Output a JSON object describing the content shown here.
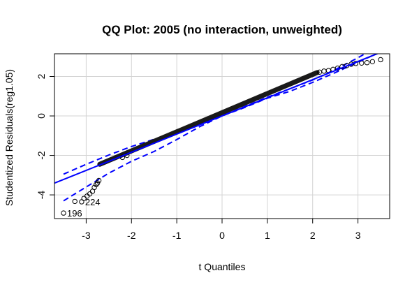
{
  "chart_data": {
    "type": "scatter",
    "title": "QQ Plot: 2005 (no interaction, unweighted)",
    "xlabel": "t Quantiles",
    "ylabel": "Studentized Residuals(reg1.05)",
    "xlim": [
      -3.7,
      3.7
    ],
    "ylim": [
      -5.2,
      3.15
    ],
    "x_ticks": [
      "-3",
      "-2",
      "-1",
      "0",
      "1",
      "2",
      "3"
    ],
    "y_ticks": [
      "-4",
      "-2",
      "0",
      "2"
    ],
    "grid": true,
    "colors": {
      "points": "#000000",
      "reference_line": "#0000ff",
      "grid": "#d3d3d3",
      "frame": "#000000"
    },
    "reference_line": {
      "intercept": 0.0,
      "slope": 0.92
    },
    "confidence_band": {
      "x": [
        -3.5,
        -3.0,
        -2.5,
        -2.0,
        -1.5,
        -1.0,
        -0.5,
        0.0,
        0.5,
        1.0,
        1.5,
        2.0,
        2.5,
        3.0,
        3.5
      ],
      "upper": [
        -2.95,
        -2.45,
        -1.98,
        -1.55,
        -1.18,
        -0.82,
        -0.41,
        0.0,
        0.48,
        0.95,
        1.38,
        1.82,
        2.35,
        2.95,
        3.6
      ],
      "lower": [
        -4.3,
        -3.6,
        -2.9,
        -2.3,
        -1.8,
        -1.2,
        -0.55,
        0.0,
        0.43,
        0.9,
        1.25,
        1.7,
        2.2,
        2.72,
        3.25
      ]
    },
    "sample_range": {
      "x_from": -2.7,
      "x_to": 2.1,
      "y_from": -2.45,
      "y_to": 2.2
    },
    "points": [
      {
        "x": -3.5,
        "y": -4.92
      },
      {
        "x": -3.25,
        "y": -4.33
      },
      {
        "x": -3.1,
        "y": -4.35
      },
      {
        "x": -3.05,
        "y": -4.18
      },
      {
        "x": -2.98,
        "y": -4.06
      },
      {
        "x": -2.92,
        "y": -3.95
      },
      {
        "x": -2.86,
        "y": -3.82
      },
      {
        "x": -2.82,
        "y": -3.62
      },
      {
        "x": -2.78,
        "y": -3.48
      },
      {
        "x": -2.75,
        "y": -3.4
      },
      {
        "x": -2.72,
        "y": -3.27
      },
      {
        "x": -2.2,
        "y": -2.1
      },
      {
        "x": -2.1,
        "y": -2.0
      },
      {
        "x": 2.15,
        "y": 2.22
      },
      {
        "x": 2.25,
        "y": 2.27
      },
      {
        "x": 2.35,
        "y": 2.3
      },
      {
        "x": 2.45,
        "y": 2.36
      },
      {
        "x": 2.55,
        "y": 2.42
      },
      {
        "x": 2.65,
        "y": 2.5
      },
      {
        "x": 2.75,
        "y": 2.55
      },
      {
        "x": 2.85,
        "y": 2.62
      },
      {
        "x": 2.95,
        "y": 2.66
      },
      {
        "x": 3.08,
        "y": 2.68
      },
      {
        "x": 3.2,
        "y": 2.7
      },
      {
        "x": 3.32,
        "y": 2.75
      },
      {
        "x": 3.5,
        "y": 2.85
      }
    ],
    "labeled_points": [
      {
        "label": "196",
        "x": -3.5,
        "y": -4.92
      },
      {
        "label": "224",
        "x": -3.1,
        "y": -4.35
      }
    ]
  }
}
